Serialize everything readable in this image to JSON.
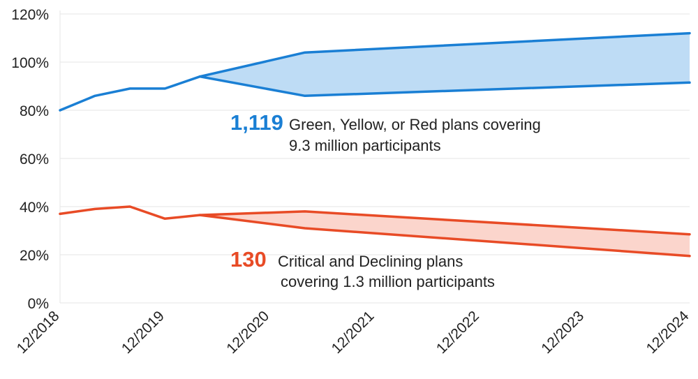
{
  "chart_data": {
    "type": "line",
    "title": "",
    "xlabel": "",
    "ylabel": "",
    "ylim": [
      0,
      120
    ],
    "yticks": [
      "0%",
      "20%",
      "40%",
      "60%",
      "80%",
      "100%",
      "120%"
    ],
    "ytick_values": [
      0,
      20,
      40,
      60,
      80,
      100,
      120
    ],
    "xticks": [
      "12/2018",
      "12/2019",
      "12/2020",
      "12/2021",
      "12/2022",
      "12/2023",
      "12/2024"
    ],
    "xlim": [
      0,
      72
    ],
    "grid": true,
    "series": [
      {
        "name": "Green, Yellow, or Red plans",
        "color": "#1a7fd4",
        "fill": "#bedcf5",
        "history": [
          [
            0,
            80
          ],
          [
            4,
            86
          ],
          [
            8,
            89
          ],
          [
            12,
            89
          ],
          [
            16,
            94
          ]
        ],
        "upper": [
          [
            16,
            94
          ],
          [
            28,
            104
          ],
          [
            72,
            112
          ]
        ],
        "lower": [
          [
            16,
            94
          ],
          [
            28,
            86
          ],
          [
            72,
            91.5
          ]
        ]
      },
      {
        "name": "Critical and Declining plans",
        "color": "#e84b26",
        "fill": "#fbd5cc",
        "history": [
          [
            0,
            37
          ],
          [
            4,
            39
          ],
          [
            8,
            40
          ],
          [
            12,
            35
          ],
          [
            16,
            36.5
          ]
        ],
        "upper": [
          [
            16,
            36.5
          ],
          [
            28,
            38
          ],
          [
            72,
            28.5
          ]
        ],
        "lower": [
          [
            16,
            36.5
          ],
          [
            28,
            31
          ],
          [
            72,
            19.5
          ]
        ]
      }
    ],
    "annotations": [
      {
        "number": "1,119",
        "line1": "Green, Yellow, or Red plans covering",
        "line2": "9.3 million participants",
        "color": "#1a7fd4"
      },
      {
        "number": "130",
        "line1": "Critical and Declining plans",
        "line2": "covering 1.3 million participants",
        "color": "#e84b26"
      }
    ]
  }
}
